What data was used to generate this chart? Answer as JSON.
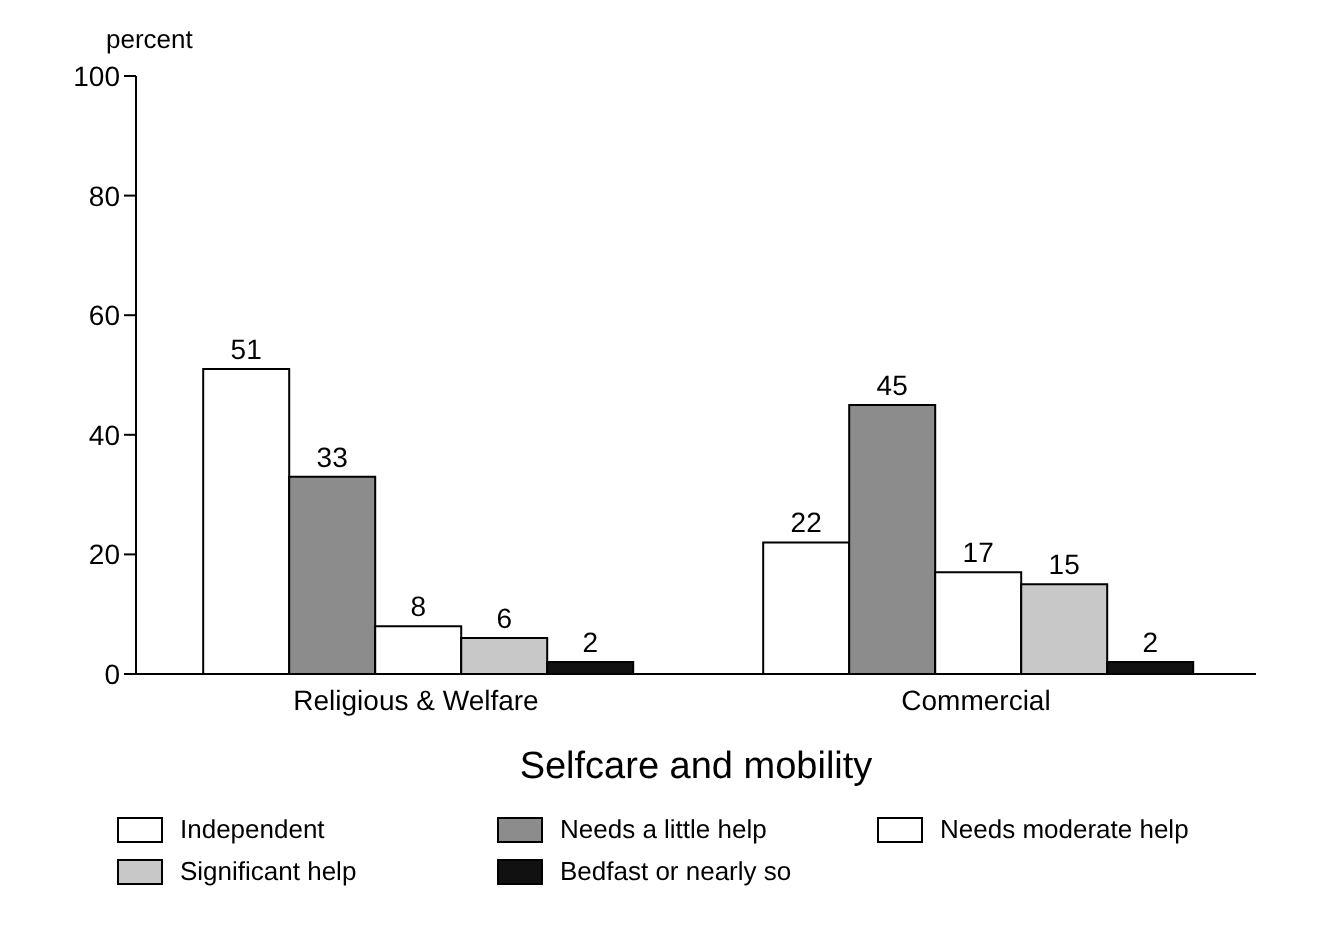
{
  "chart_data": {
    "type": "bar",
    "ylabel": "percent",
    "xlabel": "Selfcare and mobility",
    "categories": [
      "Religious & Welfare",
      "Commercial"
    ],
    "series": [
      {
        "name": "Independent",
        "color": "#ffffff",
        "values": [
          51,
          22
        ]
      },
      {
        "name": "Needs a little help",
        "color": "#8c8c8c",
        "values": [
          33,
          45
        ]
      },
      {
        "name": "Needs moderate help",
        "color": "#ffffff",
        "values": [
          8,
          17
        ]
      },
      {
        "name": "Significant help",
        "color": "#c8c8c8",
        "values": [
          6,
          15
        ]
      },
      {
        "name": "Bedfast or nearly so",
        "color": "#111111",
        "values": [
          2,
          2
        ]
      }
    ],
    "ylim": [
      0,
      100
    ],
    "yticks": [
      0,
      20,
      40,
      60,
      80,
      100
    ],
    "grid": false,
    "legend": "bottom",
    "data_labels": true
  }
}
